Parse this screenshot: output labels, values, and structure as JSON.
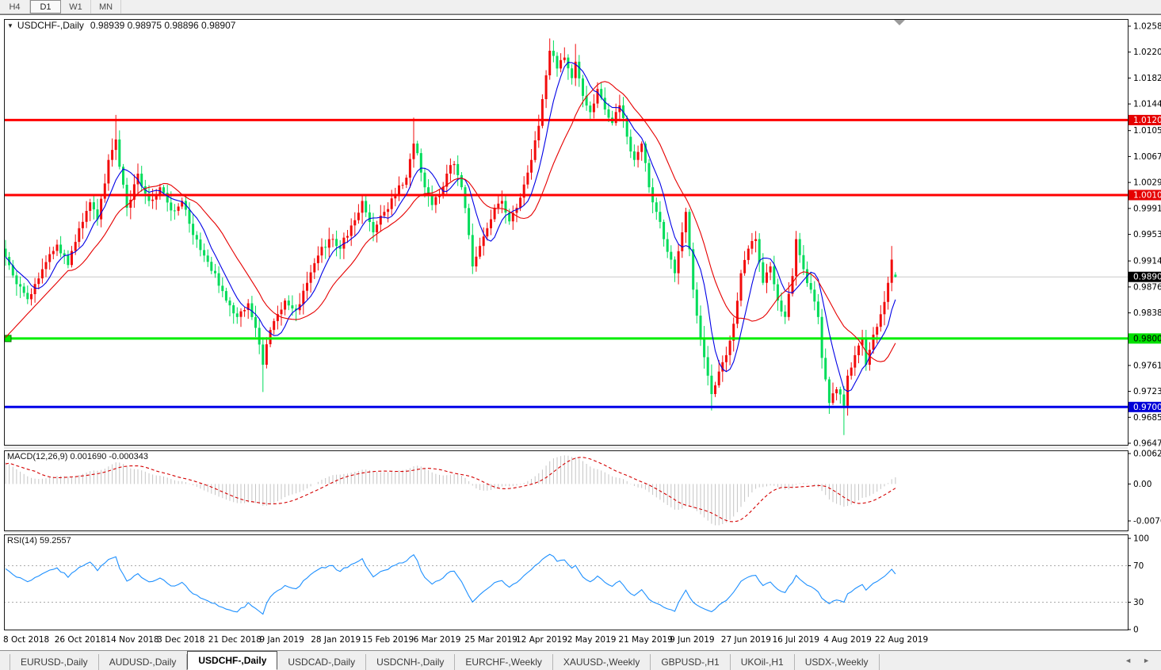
{
  "toolbar": {
    "timeframes": [
      {
        "label": "H4",
        "active": false
      },
      {
        "label": "D1",
        "active": true
      },
      {
        "label": "W1",
        "active": false
      },
      {
        "label": "MN",
        "active": false
      }
    ]
  },
  "chart": {
    "symbol": "USDCHF-,Daily",
    "ohlc_display": "0.98939 0.98975 0.98896 0.98907",
    "dropdown_icon": "▼"
  },
  "macd": {
    "label": "MACD(12,26,9) 0.001690 -0.000343"
  },
  "rsi": {
    "label": "RSI(14) 59.2557"
  },
  "tabs": {
    "items": [
      {
        "label": "EURUSD-,Daily",
        "active": false
      },
      {
        "label": "AUDUSD-,Daily",
        "active": false
      },
      {
        "label": "USDCHF-,Daily",
        "active": true
      },
      {
        "label": "USDCAD-,Daily",
        "active": false
      },
      {
        "label": "USDCNH-,Daily",
        "active": false
      },
      {
        "label": "EURCHF-,Weekly",
        "active": false
      },
      {
        "label": "XAUUSD-,Weekly",
        "active": false
      },
      {
        "label": "GBPUSD-,H1",
        "active": false
      },
      {
        "label": "UKOil-,H1",
        "active": false
      },
      {
        "label": "USDX-,Weekly",
        "active": false
      }
    ],
    "scroll_left_icon": "◄",
    "scroll_right_icon": "►"
  },
  "chart_data": {
    "type": "candlestick",
    "symbol": "USDCHF",
    "timeframe": "Daily",
    "bars": 243,
    "last_bar": {
      "open": 0.98939,
      "high": 0.98975,
      "low": 0.98896,
      "close": 0.98907
    },
    "price_range": {
      "top": 1.0258,
      "bottom": 0.9647
    },
    "price_axis_ticks": [
      {
        "label": "1.02580",
        "value": 1.0258
      },
      {
        "label": "1.02200",
        "value": 1.022
      },
      {
        "label": "1.01820",
        "value": 1.0182
      },
      {
        "label": "1.01440",
        "value": 1.0144
      },
      {
        "label": "1.01050",
        "value": 1.0105
      },
      {
        "label": "1.00670",
        "value": 1.0067
      },
      {
        "label": "1.00290",
        "value": 1.0029
      },
      {
        "label": "0.99910",
        "value": 0.9991
      },
      {
        "label": "0.99530",
        "value": 0.9953
      },
      {
        "label": "0.99140",
        "value": 0.9914
      },
      {
        "label": "0.98760",
        "value": 0.9876
      },
      {
        "label": "0.98380",
        "value": 0.9838
      },
      {
        "label": "0.97610",
        "value": 0.9761
      },
      {
        "label": "0.97230",
        "value": 0.9723
      },
      {
        "label": "0.96850",
        "value": 0.9685
      },
      {
        "label": "0.96470",
        "value": 0.9647
      }
    ],
    "hlines": [
      {
        "value": 1.01205,
        "label": "1.01205",
        "color": "#ff0000",
        "badge_bg": "#e60000",
        "badge_text": "#ffffff",
        "marker": false
      },
      {
        "value": 1.00106,
        "label": "1.00106",
        "color": "#ff0000",
        "badge_bg": "#e60000",
        "badge_text": "#ffffff",
        "marker": false
      },
      {
        "value": 0.98004,
        "label": "0.98004",
        "color": "#00ee00",
        "badge_bg": "#00e000",
        "badge_text": "#000000",
        "marker": true
      },
      {
        "value": 0.97001,
        "label": "0.97001",
        "color": "#0000e8",
        "badge_bg": "#0000d8",
        "badge_text": "#ffffff",
        "marker": false
      }
    ],
    "current_price": {
      "value": 0.98907,
      "label": "0.98907",
      "line_color": "#c8c8c8",
      "badge_bg": "#000000",
      "badge_text": "#ffffff"
    },
    "dates": [
      "8 Oct 2018",
      "26 Oct 2018",
      "14 Nov 2018",
      "3 Dec 2018",
      "21 Dec 2018",
      "9 Jan 2019",
      "28 Jan 2019",
      "15 Feb 2019",
      "6 Mar 2019",
      "25 Mar 2019",
      "12 Apr 2019",
      "2 May 2019",
      "21 May 2019",
      "9 Jun 2019",
      "27 Jun 2019",
      "16 Jul 2019",
      "4 Aug 2019",
      "22 Aug 2019"
    ],
    "close_anchors": [
      [
        0,
        0.992
      ],
      [
        3,
        0.988
      ],
      [
        6,
        0.9858
      ],
      [
        10,
        0.9902
      ],
      [
        14,
        0.9938
      ],
      [
        17,
        0.9908
      ],
      [
        20,
        0.9962
      ],
      [
        23,
        1.0
      ],
      [
        25,
        0.9975
      ],
      [
        28,
        1.0062
      ],
      [
        30,
        1.0092
      ],
      [
        31,
        1.0052
      ],
      [
        33,
        0.9992
      ],
      [
        36,
        1.0042
      ],
      [
        39,
        1.0002
      ],
      [
        42,
        1.0022
      ],
      [
        45,
        0.9988
      ],
      [
        48,
        1.0002
      ],
      [
        51,
        0.9952
      ],
      [
        54,
        0.9922
      ],
      [
        57,
        0.9896
      ],
      [
        60,
        0.9856
      ],
      [
        63,
        0.9832
      ],
      [
        66,
        0.9852
      ],
      [
        68,
        0.9816
      ],
      [
        70,
        0.9762
      ],
      [
        71,
        0.9792
      ],
      [
        73,
        0.9826
      ],
      [
        76,
        0.9856
      ],
      [
        79,
        0.9842
      ],
      [
        82,
        0.9882
      ],
      [
        85,
        0.9922
      ],
      [
        88,
        0.9946
      ],
      [
        91,
        0.9932
      ],
      [
        94,
        0.9966
      ],
      [
        97,
        1.0002
      ],
      [
        100,
        0.9956
      ],
      [
        103,
        0.9986
      ],
      [
        106,
        1.0012
      ],
      [
        109,
        1.0036
      ],
      [
        111,
        1.0086
      ],
      [
        112,
        1.0072
      ],
      [
        114,
        1.0022
      ],
      [
        116,
        0.9996
      ],
      [
        118,
        1.0012
      ],
      [
        120,
        1.0042
      ],
      [
        122,
        1.0056
      ],
      [
        124,
        1.0022
      ],
      [
        126,
        0.9952
      ],
      [
        127,
        0.9906
      ],
      [
        129,
        0.9936
      ],
      [
        131,
        0.9962
      ],
      [
        133,
        0.9992
      ],
      [
        135,
        1.0002
      ],
      [
        137,
        0.9972
      ],
      [
        139,
        0.9992
      ],
      [
        141,
        1.0026
      ],
      [
        143,
        1.0062
      ],
      [
        145,
        1.0112
      ],
      [
        147,
        1.0186
      ],
      [
        148,
        1.0222
      ],
      [
        150,
        1.0196
      ],
      [
        152,
        1.0212
      ],
      [
        154,
        1.0182
      ],
      [
        155,
        1.0206
      ],
      [
        157,
        1.0156
      ],
      [
        159,
        1.0132
      ],
      [
        161,
        1.0166
      ],
      [
        163,
        1.0136
      ],
      [
        165,
        1.0116
      ],
      [
        167,
        1.0142
      ],
      [
        169,
        1.0096
      ],
      [
        171,
        1.0062
      ],
      [
        173,
        1.0086
      ],
      [
        175,
        1.0022
      ],
      [
        177,
        0.9986
      ],
      [
        179,
        0.9946
      ],
      [
        181,
        0.9916
      ],
      [
        182,
        0.9896
      ],
      [
        184,
        0.9956
      ],
      [
        185,
        0.9986
      ],
      [
        187,
        0.9872
      ],
      [
        189,
        0.9802
      ],
      [
        191,
        0.9746
      ],
      [
        192,
        0.9719
      ],
      [
        194,
        0.9752
      ],
      [
        196,
        0.9776
      ],
      [
        198,
        0.9822
      ],
      [
        200,
        0.9896
      ],
      [
        202,
        0.9932
      ],
      [
        204,
        0.9946
      ],
      [
        206,
        0.9882
      ],
      [
        208,
        0.9906
      ],
      [
        210,
        0.9856
      ],
      [
        212,
        0.9832
      ],
      [
        214,
        0.9892
      ],
      [
        215,
        0.9946
      ],
      [
        217,
        0.9902
      ],
      [
        219,
        0.9872
      ],
      [
        221,
        0.9832
      ],
      [
        222,
        0.9772
      ],
      [
        224,
        0.9706
      ],
      [
        226,
        0.9726
      ],
      [
        228,
        0.9702
      ],
      [
        229,
        0.9746
      ],
      [
        231,
        0.9776
      ],
      [
        233,
        0.9802
      ],
      [
        234,
        0.9762
      ],
      [
        236,
        0.9806
      ],
      [
        238,
        0.9836
      ],
      [
        240,
        0.9882
      ],
      [
        241,
        0.9916
      ],
      [
        242,
        0.98907
      ]
    ],
    "wick_overrides_high": {
      "30": 1.0128,
      "111": 1.0124,
      "148": 1.024,
      "155": 1.0232,
      "185": 0.9992,
      "241": 0.9936
    },
    "wick_overrides_low": {
      "70": 0.9722,
      "192": 0.9695,
      "224": 0.969,
      "228": 0.9659
    },
    "moving_averages": [
      {
        "name": "fast-ma",
        "period": 7,
        "color": "#0000e6"
      },
      {
        "name": "slow-ma",
        "period": 18,
        "color": "#e60000"
      }
    ],
    "macd_pane": {
      "params": "12,26,9",
      "main_value": "0.001690",
      "signal_value": "-0.000343",
      "axis": [
        {
          "label": "0.006286",
          "value": 0.006286
        },
        {
          "label": "0.00",
          "value": 0
        },
        {
          "label": "-0.00762",
          "value": -0.00762
        }
      ],
      "hist_color": "#c4c4c4",
      "signal_color": "#d40000"
    },
    "rsi_pane": {
      "period": 14,
      "value": "59.2557",
      "axis": [
        {
          "label": "100",
          "value": 100
        },
        {
          "label": "70",
          "value": 70
        },
        {
          "label": "30",
          "value": 30
        },
        {
          "label": "0",
          "value": 0
        }
      ],
      "levels": [
        70,
        30
      ],
      "line_color": "#1e90ff",
      "level_color": "#aaaaaa"
    },
    "colors": {
      "bull": "#f20c0c",
      "bear": "#00dc5a",
      "background": "#ffffff",
      "border": "#1a1a1a"
    }
  }
}
